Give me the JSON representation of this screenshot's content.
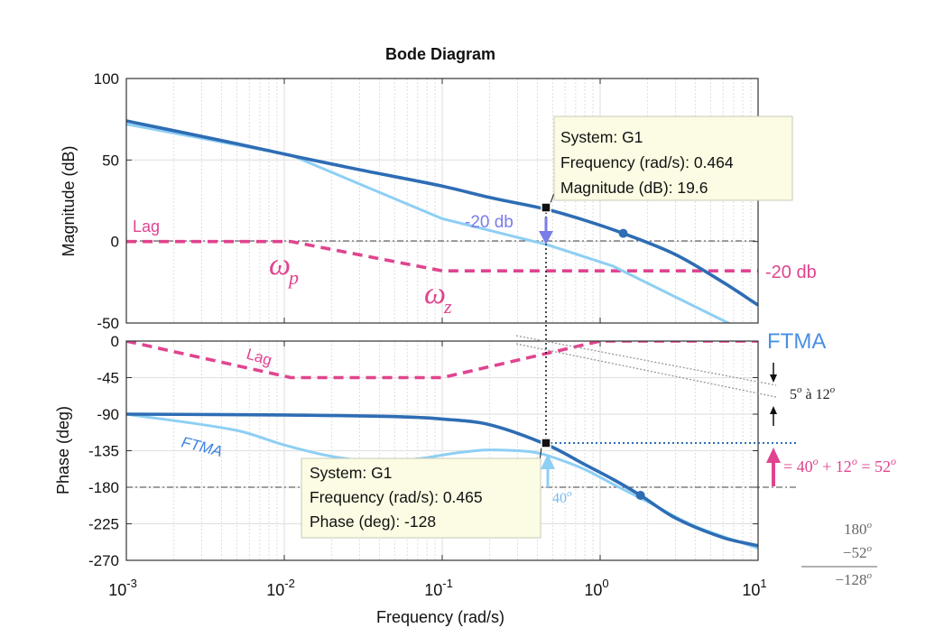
{
  "chart_data": [
    {
      "type": "line",
      "panel": "magnitude",
      "title": "Bode Diagram",
      "ylabel": "Magnitude (dB)",
      "xscale": "log",
      "xlim": [
        0.001,
        10
      ],
      "ylim": [
        -50,
        100
      ],
      "yticks": [
        100,
        50,
        0,
        -50
      ],
      "xticks": [
        0.001,
        0.01,
        0.1,
        1,
        10
      ],
      "xticklabels": [
        {
          "base": "10",
          "exp": "-3"
        },
        {
          "base": "10",
          "exp": "-2"
        },
        {
          "base": "10",
          "exp": "-1"
        },
        {
          "base": "10",
          "exp": "0"
        },
        {
          "base": "10",
          "exp": "1"
        }
      ],
      "grid": true,
      "series": [
        {
          "name": "",
          "color": "#2e6db4",
          "x": [
            0.001,
            0.002,
            0.005,
            0.012,
            0.03,
            0.1,
            0.2,
            0.464,
            0.8,
            1.4,
            3,
            6,
            10
          ],
          "y": [
            74,
            68,
            60,
            52,
            44,
            34,
            27,
            19.6,
            13,
            5,
            -8,
            -25,
            -39
          ]
        },
        {
          "name": "FTMA",
          "color": "#8ecff4",
          "x": [
            0.001,
            0.011,
            0.1,
            0.464,
            1.2,
            10
          ],
          "y": [
            72,
            53,
            14,
            -2,
            -15,
            -59
          ]
        },
        {
          "name": "Lag",
          "color": "#e0448f",
          "dashed": true,
          "x": [
            0.001,
            0.011,
            0.1,
            10
          ],
          "y": [
            0,
            0,
            -18,
            -18
          ]
        }
      ],
      "markers": [
        {
          "x": 1.4,
          "y": 5,
          "color": "#2e6db4"
        }
      ],
      "datatip": {
        "x": 0.464,
        "y": 19.6,
        "lines": [
          "System: G1",
          "Frequency (rad/s): 0.464",
          "Magnitude (dB): 19.6"
        ]
      },
      "annotations": [
        {
          "text": "Lag",
          "color": "#e0448f"
        },
        {
          "text": "-20 db",
          "color": "#7a7de8"
        },
        {
          "text": "-20 db",
          "color": "#e0448f"
        },
        {
          "text": "ω",
          "sub": "p",
          "color": "#e0448f"
        },
        {
          "text": "ω",
          "sub": "z",
          "color": "#e0448f"
        }
      ]
    },
    {
      "type": "line",
      "panel": "phase",
      "ylabel": "Phase (deg)",
      "xlabel": "Frequency  (rad/s)",
      "xscale": "log",
      "xlim": [
        0.001,
        10
      ],
      "ylim": [
        -270,
        0
      ],
      "yticks": [
        0,
        -45,
        -90,
        -135,
        -180,
        -225,
        -270
      ],
      "grid": true,
      "series": [
        {
          "name": "",
          "color": "#2e6db4",
          "x": [
            0.001,
            0.01,
            0.05,
            0.1,
            0.2,
            0.465,
            0.8,
            1.2,
            1.8,
            3,
            6,
            10
          ],
          "y": [
            -90,
            -91,
            -93,
            -96,
            -103,
            -128,
            -152,
            -170,
            -190,
            -218,
            -242,
            -252
          ]
        },
        {
          "name": "FTMA",
          "color": "#8ecff4",
          "x": [
            0.001,
            0.005,
            0.01,
            0.02,
            0.04,
            0.07,
            0.12,
            0.2,
            0.35,
            0.465,
            0.8,
            1.2,
            2,
            4,
            10
          ],
          "y": [
            -90,
            -110,
            -128,
            -142,
            -148,
            -145,
            -138,
            -134,
            -136,
            -141,
            -158,
            -176,
            -198,
            -228,
            -255
          ]
        },
        {
          "name": "Lag",
          "color": "#e0448f",
          "dashed": true,
          "x": [
            0.001,
            0.011,
            0.1,
            1,
            10
          ],
          "y": [
            0,
            -45,
            -45,
            0,
            0
          ]
        }
      ],
      "markers": [
        {
          "x": 1.8,
          "y": -190,
          "color": "#2e6db4"
        }
      ],
      "datatip": {
        "x": 0.465,
        "y": -128,
        "lines": [
          "System: G1",
          "Frequency (rad/s): 0.465",
          "Phase (deg): -128"
        ]
      },
      "annotations": [
        {
          "text": "Lag",
          "color": "#e0448f"
        },
        {
          "text": "FTMA",
          "color": "#3d83e0"
        },
        {
          "text": "FTMA",
          "color": "#4a90e2"
        },
        {
          "text": "40",
          "sup": "o",
          "color": "#76b9ec"
        },
        {
          "text": "5",
          "sup": "o",
          "tail": " à 12",
          "sup2": "o",
          "color": "#222222"
        },
        {
          "text": "= 40",
          "sup": "o",
          "tail": " + 12",
          "sup2": "o",
          "tail2": " = 52",
          "sup3": "o",
          "color": "#e0448f"
        }
      ],
      "calc": [
        {
          "base": "180",
          "sup": "o"
        },
        {
          "base": "−52",
          "sup": "o"
        },
        {
          "base": "−128",
          "sup": "o"
        }
      ]
    }
  ]
}
